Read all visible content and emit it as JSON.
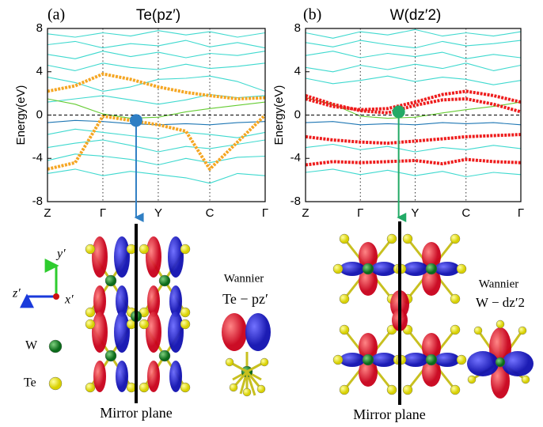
{
  "chart_data": [
    {
      "type": "line",
      "panel_label": "(a)",
      "title": "Te(pz′)",
      "y_label": "Energy(eV)",
      "x": [
        0,
        0.5,
        1,
        1.5,
        2,
        2.5,
        2.93,
        3.43,
        3.93
      ],
      "xlim": [
        0,
        3.93
      ],
      "xticks": [
        {
          "value": 0,
          "label": "Z"
        },
        {
          "value": 1,
          "label": "Γ"
        },
        {
          "value": 2,
          "label": "Y"
        },
        {
          "value": 2.93,
          "label": "C"
        },
        {
          "value": 3.93,
          "label": "Γ"
        }
      ],
      "ylim": [
        -8,
        8
      ],
      "yticks": [
        8,
        4,
        0,
        -4,
        -8
      ],
      "reference_line": 0,
      "series": [
        {
          "color": "#3fd9cf",
          "values": [
            7.5,
            7.2,
            7.6,
            7.3,
            7.8,
            7.4,
            7.7,
            7.2,
            7.6
          ]
        },
        {
          "color": "#3fd9cf",
          "values": [
            6.5,
            6.8,
            6.2,
            6.6,
            6.4,
            6.9,
            6.3,
            6.7,
            6.2
          ]
        },
        {
          "color": "#3fd9cf",
          "values": [
            5.6,
            5.2,
            5.9,
            5.4,
            5.8,
            5.3,
            5.7,
            5.5,
            5.9
          ]
        },
        {
          "color": "#3fd9cf",
          "values": [
            4.6,
            4.1,
            4.8,
            4.4,
            4.2,
            4.7,
            4.3,
            4.5,
            4.8
          ]
        },
        {
          "color": "#3fd9cf",
          "values": [
            3.5,
            3.0,
            2.2,
            2.6,
            3.3,
            3.4,
            3.6,
            3.1,
            2.2
          ]
        },
        {
          "color": "#3fd9cf",
          "values": [
            1.2,
            1.5,
            1.8,
            1.4,
            1.0,
            1.4,
            1.9,
            1.6,
            1.8
          ]
        },
        {
          "color": "#66cc33",
          "values": [
            1.5,
            1.0,
            0.1,
            -0.3,
            -0.2,
            0.3,
            0.6,
            0.9,
            1.2
          ]
        },
        {
          "color": "#1f77b4",
          "values": [
            -0.7,
            -0.5,
            -0.6,
            -0.8,
            -0.9,
            -0.8,
            -0.9,
            -0.7,
            -0.6
          ]
        },
        {
          "color": "#3fd9cf",
          "values": [
            -1.8,
            -1.3,
            -1.6,
            -1.9,
            -2.2,
            -1.6,
            -1.8,
            -2.1,
            -1.6
          ]
        },
        {
          "color": "#3fd9cf",
          "values": [
            -3.0,
            -2.6,
            -2.3,
            -2.8,
            -3.4,
            -2.9,
            -3.1,
            -2.7,
            -2.3
          ]
        },
        {
          "color": "#3fd9cf",
          "values": [
            -4.2,
            -3.6,
            -3.8,
            -4.1,
            -4.6,
            -4.0,
            -4.4,
            -3.9,
            -3.8
          ]
        },
        {
          "color": "#3fd9cf",
          "values": [
            -5.4,
            -5.0,
            -5.6,
            -5.2,
            -5.5,
            -5.8,
            -6.3,
            -5.4,
            -5.6
          ]
        },
        {
          "color": "#f5a623",
          "weighted": true,
          "values": [
            -5.0,
            -4.4,
            -0.1,
            -0.5,
            -0.9,
            -1.5,
            -5.0,
            -2.5,
            0.0
          ]
        },
        {
          "color": "#f5a623",
          "weighted": true,
          "values": [
            2.2,
            2.7,
            3.8,
            3.3,
            2.6,
            2.1,
            1.8,
            1.5,
            1.6
          ]
        }
      ],
      "points": [
        {
          "x": 1.6,
          "y": -0.5,
          "color": "#2f7fc4"
        }
      ]
    },
    {
      "type": "line",
      "panel_label": "(b)",
      "title": "W(dz′2)",
      "y_label": "Energy(eV)",
      "x": [
        0,
        0.5,
        1,
        1.5,
        2,
        2.5,
        2.93,
        3.43,
        3.93
      ],
      "xlim": [
        0,
        3.93
      ],
      "xticks": [
        {
          "value": 0,
          "label": "Z"
        },
        {
          "value": 1,
          "label": "Γ"
        },
        {
          "value": 2,
          "label": "Y"
        },
        {
          "value": 2.93,
          "label": "C"
        },
        {
          "value": 3.93,
          "label": "Γ"
        }
      ],
      "ylim": [
        -8,
        8
      ],
      "yticks": [
        8,
        4,
        0,
        -4,
        -8
      ],
      "reference_line": 0,
      "series": [
        {
          "color": "#3fd9cf",
          "values": [
            7.6,
            7.1,
            7.7,
            7.4,
            7.9,
            7.3,
            7.6,
            7.3,
            7.7
          ]
        },
        {
          "color": "#3fd9cf",
          "values": [
            6.7,
            6.3,
            6.9,
            6.5,
            6.2,
            6.8,
            6.4,
            6.6,
            6.9
          ]
        },
        {
          "color": "#3fd9cf",
          "values": [
            5.5,
            5.9,
            5.3,
            5.7,
            5.4,
            5.8,
            5.2,
            5.6,
            5.3
          ]
        },
        {
          "color": "#3fd9cf",
          "values": [
            4.4,
            4.0,
            4.6,
            4.2,
            4.7,
            4.3,
            4.8,
            4.1,
            4.6
          ]
        },
        {
          "color": "#3fd9cf",
          "values": [
            3.4,
            2.9,
            3.2,
            3.6,
            3.1,
            3.5,
            3.3,
            2.8,
            3.2
          ]
        },
        {
          "color": "#66cc33",
          "values": [
            1.6,
            1.0,
            -0.1,
            -0.3,
            -0.2,
            0.2,
            0.5,
            0.8,
            1.2
          ]
        },
        {
          "color": "#1f77b4",
          "values": [
            -0.7,
            -0.6,
            -0.9,
            -0.8,
            -0.9,
            -0.7,
            -0.8,
            -0.7,
            -0.9
          ]
        },
        {
          "color": "#3fd9cf",
          "values": [
            -3.0,
            -2.7,
            -3.2,
            -2.9,
            -3.4,
            -3.0,
            -3.2,
            -2.8,
            -3.1
          ]
        },
        {
          "color": "#3fd9cf",
          "values": [
            -5.3,
            -5.0,
            -5.5,
            -5.1,
            -5.6,
            -5.2,
            -5.7,
            -5.3,
            -5.5
          ]
        },
        {
          "color": "#ee1c1c",
          "weighted": true,
          "values": [
            1.8,
            1.0,
            0.4,
            0.2,
            0.9,
            1.4,
            1.5,
            1.0,
            0.3
          ]
        },
        {
          "color": "#ee1c1c",
          "weighted": true,
          "values": [
            1.5,
            0.8,
            0.5,
            0.6,
            1.2,
            1.9,
            2.2,
            1.8,
            1.2
          ]
        },
        {
          "color": "#ee1c1c",
          "weighted": true,
          "values": [
            -2.0,
            -2.3,
            -2.5,
            -2.6,
            -2.4,
            -2.2,
            -2.0,
            -1.9,
            -1.8
          ]
        },
        {
          "color": "#ee1c1c",
          "weighted": true,
          "values": [
            -4.6,
            -4.3,
            -4.4,
            -4.3,
            -4.2,
            -4.5,
            -4.1,
            -4.3,
            -4.4
          ]
        }
      ],
      "points": [
        {
          "x": 1.7,
          "y": 0.3,
          "color": "#22aa66"
        }
      ]
    }
  ],
  "illustration": {
    "axes": {
      "y": "y′",
      "z": "z′",
      "x": "x′"
    },
    "legend": {
      "w": "W",
      "te": "Te"
    },
    "left": {
      "caption": "Mirror plane",
      "wannier": "Wannier",
      "orbital": "Te − pz′"
    },
    "right": {
      "caption": "Mirror plane",
      "wannier": "Wannier",
      "orbital": "W − dz′2"
    }
  }
}
